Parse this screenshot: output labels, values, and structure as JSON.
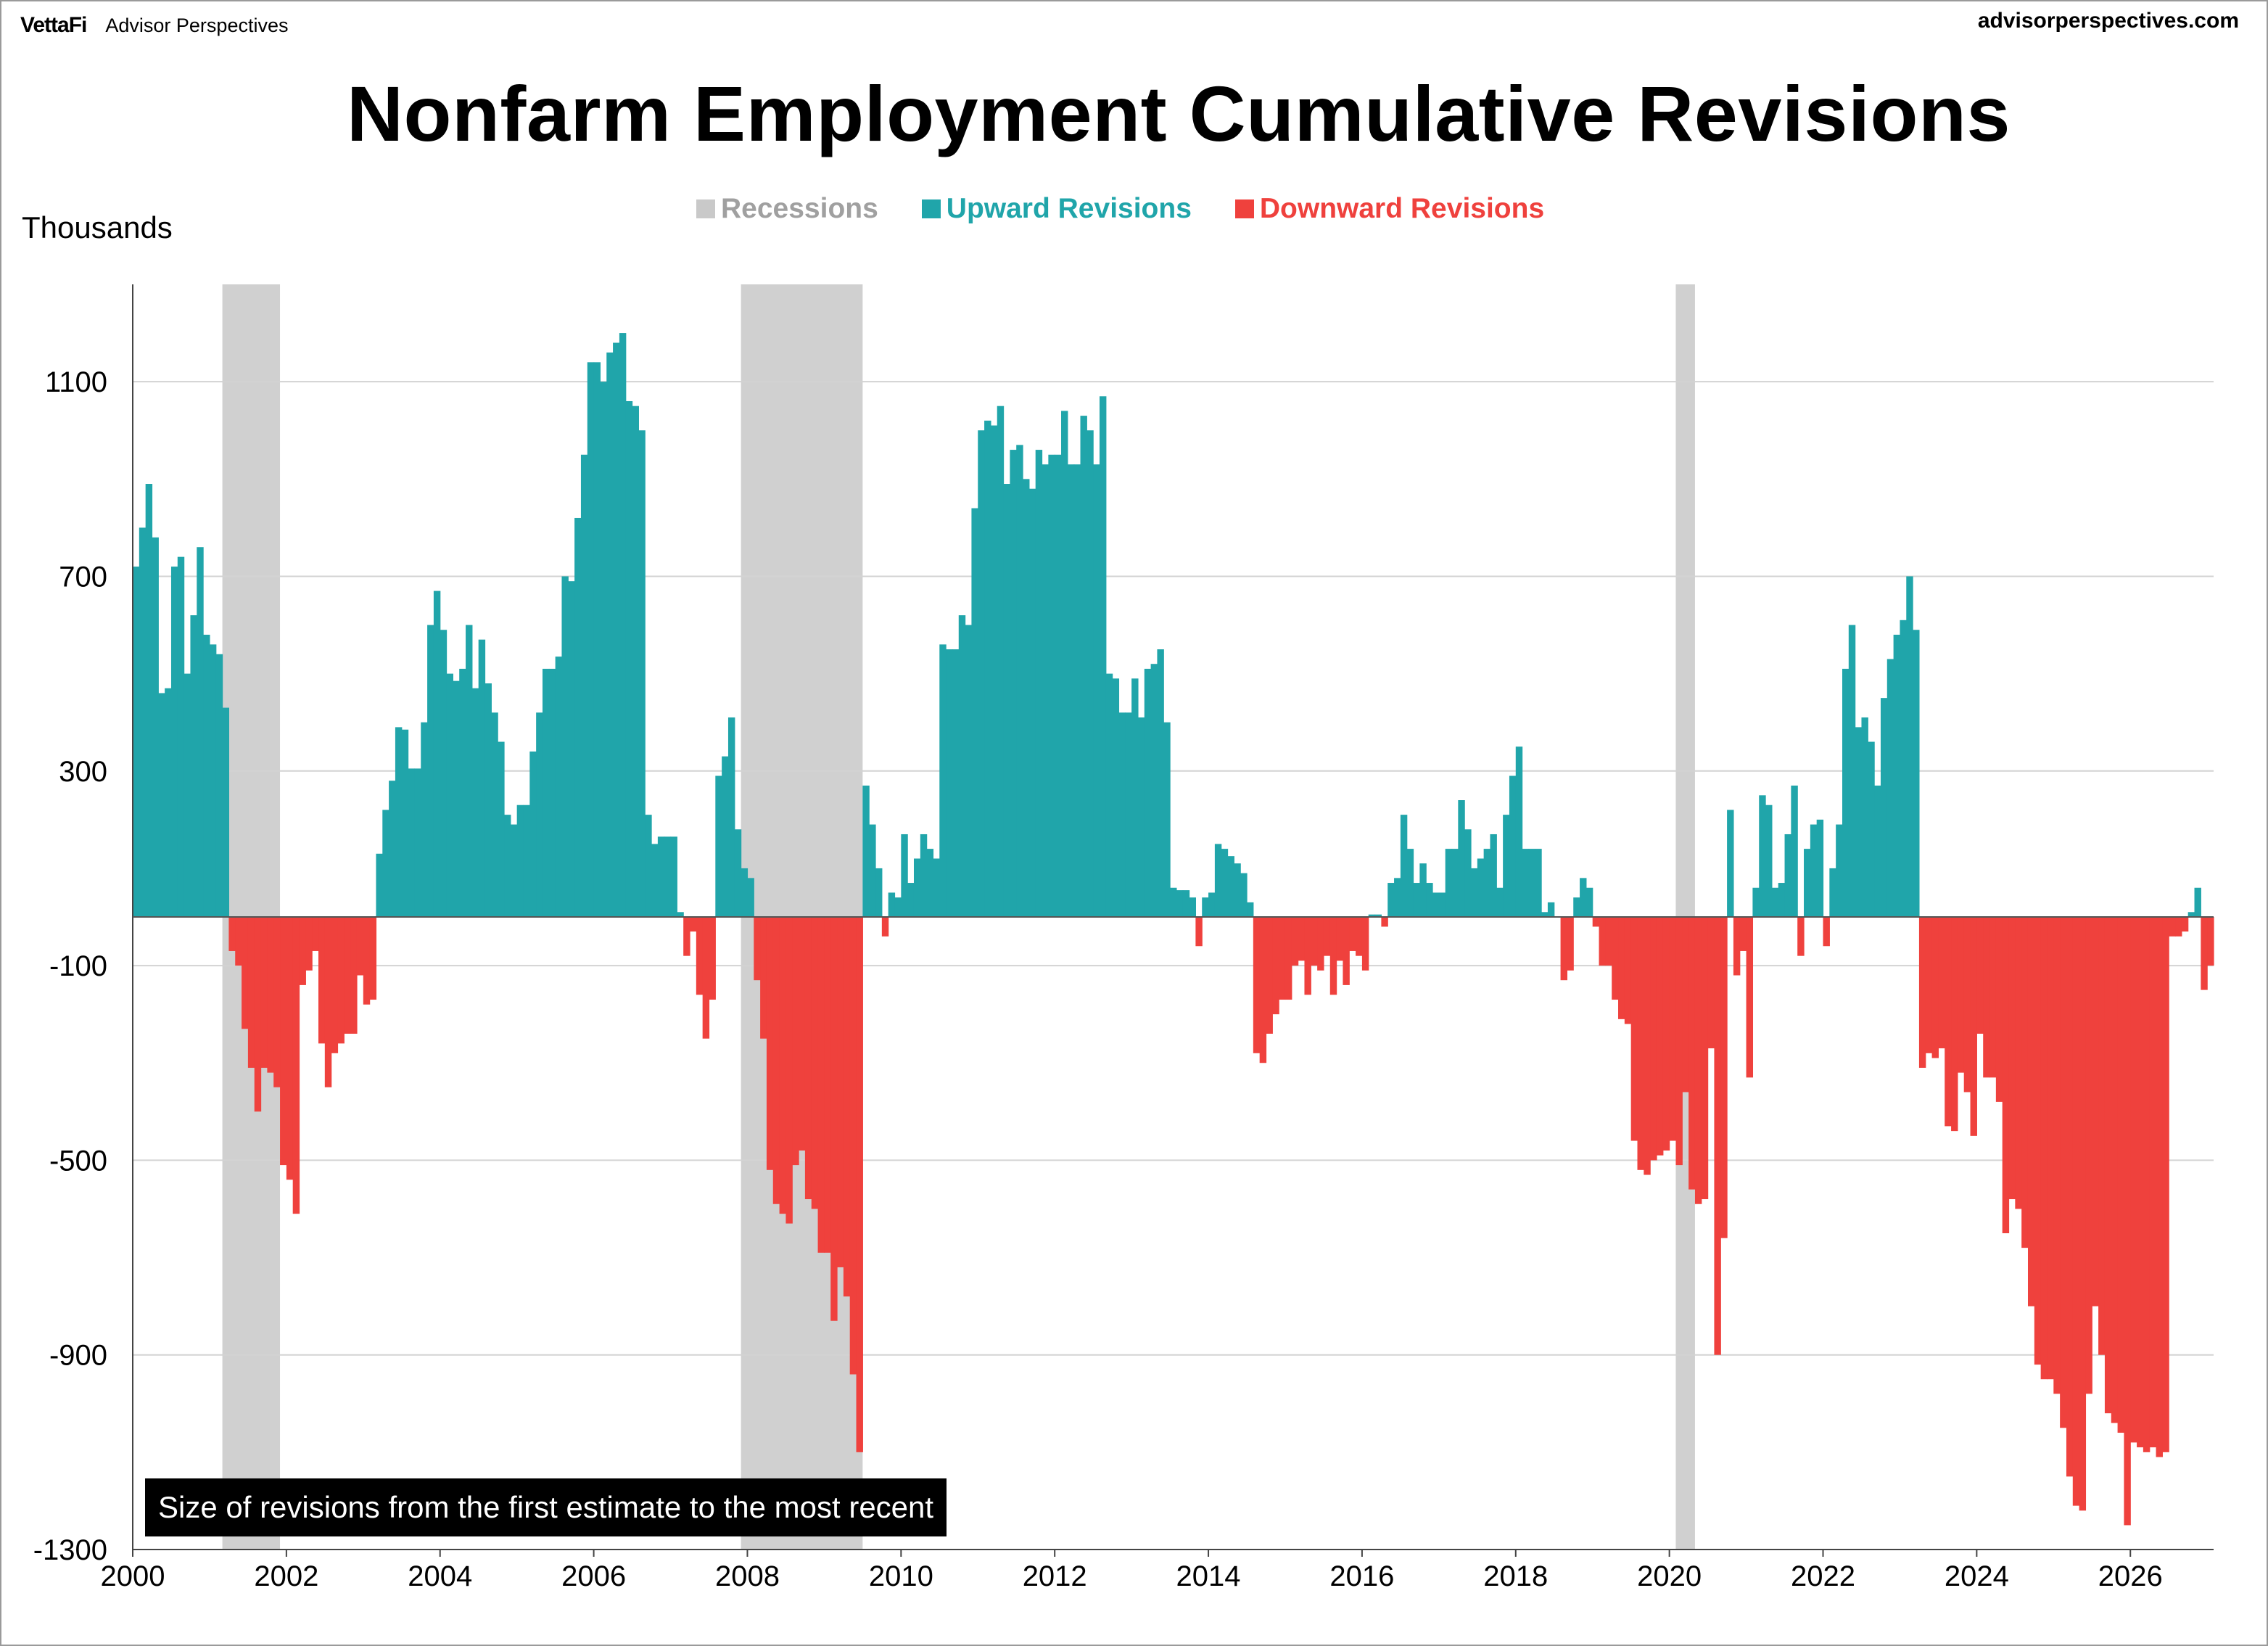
{
  "header": {
    "brand_logo": "VettaFi",
    "brand_name": "Advisor Perspectives",
    "site": "advisorperspectives.com"
  },
  "colors": {
    "upward": "#20A5AA",
    "downward": "#EF413D",
    "recession": "#D0D0D0",
    "grid": "#D3D3D3"
  },
  "chart_data": {
    "type": "bar",
    "title": "Nonfarm Employment Cumulative Revisions",
    "ylabel": "Thousands",
    "xlabel": "",
    "ylim": [
      -1300,
      1300
    ],
    "yticks": [
      1100,
      700,
      300,
      -100,
      -500,
      -900,
      -1300
    ],
    "xticks": [
      "2000",
      "2002",
      "2004",
      "2006",
      "2008",
      "2010",
      "2012",
      "2014",
      "2016",
      "2018",
      "2020",
      "2022",
      "2024",
      "2026"
    ],
    "xrange": [
      "2000-01",
      "2027-02"
    ],
    "legend": [
      "Recessions",
      "Upward Revisions",
      "Downward Revisions"
    ],
    "legend_position": "top-center",
    "grid": true,
    "note": "Size of revisions from the first estimate to the most recent",
    "recessions": [
      {
        "start": "2001-03",
        "end": "2001-11"
      },
      {
        "start": "2007-12",
        "end": "2009-06"
      },
      {
        "start": "2020-02",
        "end": "2020-04"
      }
    ],
    "series_start": "2000-01",
    "series_frequency": "monthly",
    "series": [
      {
        "name": "Nonfarm Employment Cumulative Revisions",
        "values": [
          720,
          800,
          890,
          780,
          460,
          470,
          720,
          740,
          500,
          620,
          760,
          580,
          560,
          540,
          430,
          -70,
          -100,
          -230,
          -310,
          -400,
          -310,
          -320,
          -350,
          -510,
          -540,
          -610,
          -140,
          -110,
          -70,
          -260,
          -350,
          -280,
          -260,
          -240,
          -240,
          -120,
          -180,
          -170,
          130,
          220,
          280,
          390,
          385,
          305,
          305,
          400,
          600,
          670,
          590,
          500,
          485,
          510,
          600,
          470,
          570,
          480,
          420,
          360,
          210,
          190,
          230,
          230,
          340,
          420,
          510,
          510,
          535,
          700,
          690,
          820,
          950,
          1140,
          1140,
          1100,
          1160,
          1180,
          1200,
          1060,
          1050,
          1000,
          210,
          150,
          165,
          165,
          165,
          10,
          -80,
          -30,
          -160,
          -250,
          -170,
          290,
          330,
          410,
          180,
          100,
          80,
          -130,
          -250,
          -520,
          -590,
          -610,
          -630,
          -510,
          -480,
          -580,
          -600,
          -690,
          -690,
          -830,
          -720,
          -780,
          -940,
          -1100,
          270,
          190,
          100,
          -40,
          50,
          40,
          170,
          70,
          120,
          170,
          140,
          120,
          560,
          550,
          550,
          620,
          600,
          840,
          1000,
          1020,
          1010,
          1050,
          890,
          960,
          970,
          900,
          880,
          960,
          930,
          950,
          950,
          1040,
          930,
          930,
          1030,
          1000,
          930,
          1070,
          500,
          490,
          420,
          420,
          490,
          410,
          510,
          520,
          550,
          400,
          60,
          55,
          55,
          40,
          -60,
          40,
          50,
          150,
          140,
          125,
          110,
          90,
          30,
          -280,
          -300,
          -240,
          -200,
          -170,
          -170,
          -100,
          -90,
          -160,
          -100,
          -110,
          -80,
          -160,
          -90,
          -140,
          -70,
          -80,
          -110,
          5,
          5,
          -20,
          70,
          80,
          210,
          140,
          70,
          110,
          70,
          50,
          50,
          140,
          140,
          240,
          180,
          100,
          120,
          140,
          170,
          60,
          210,
          290,
          350,
          140,
          140,
          140,
          10,
          30,
          0,
          -130,
          -110,
          40,
          80,
          60,
          -20,
          -100,
          -100,
          -170,
          -210,
          -220,
          -460,
          -520,
          -530,
          -500,
          -490,
          -480,
          -460,
          -510,
          -360,
          -560,
          -590,
          -580,
          -270,
          -900,
          -660,
          220,
          -120,
          -70,
          -330,
          60,
          250,
          230,
          60,
          70,
          170,
          270,
          -80,
          140,
          190,
          200,
          -60,
          100,
          190,
          510,
          600,
          390,
          410,
          360,
          270,
          450,
          530,
          580,
          610,
          700,
          590,
          -310,
          -280,
          -290,
          -270,
          -430,
          -440,
          -320,
          -360,
          -450,
          -240,
          -330,
          -330,
          -380,
          -650,
          -580,
          -600,
          -680,
          -800,
          -920,
          -950,
          -950,
          -980,
          -1050,
          -1150,
          -1210,
          -1220,
          -980,
          -800,
          -900,
          -1020,
          -1040,
          -1060,
          -1250,
          -1080,
          -1090,
          -1100,
          -1090,
          -1110,
          -1100,
          -40,
          -40,
          -30,
          10,
          60,
          -150,
          -100
        ]
      }
    ]
  }
}
